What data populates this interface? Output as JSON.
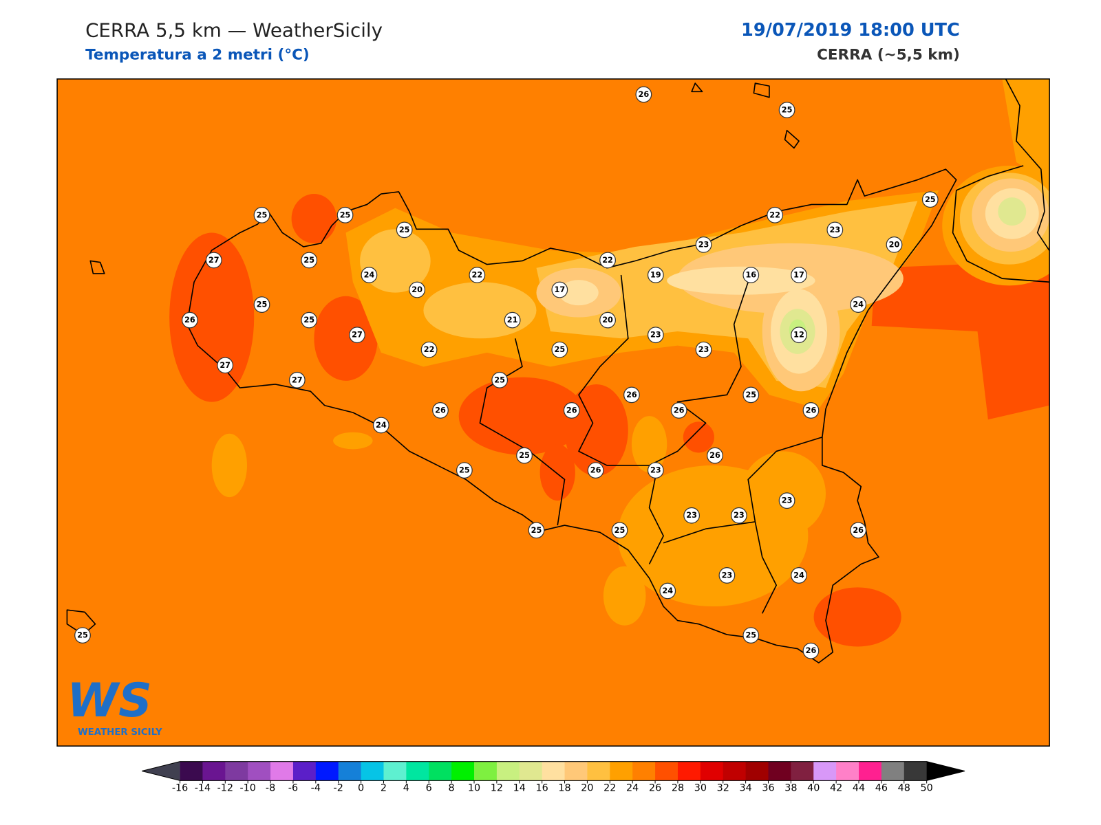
{
  "header": {
    "title": "CERRA 5,5 km — WeatherSicily",
    "subtitle": "Temperatura a 2 metri (°C)",
    "date": "19/07/2019 18:00 UTC",
    "source": "CERRA (~5,5 km)"
  },
  "logo": {
    "mark": "WS",
    "name": "WEATHER SICILY"
  },
  "stations": [
    26,
    25,
    25,
    25,
    25,
    25,
    22,
    23,
    27,
    25,
    23,
    22,
    20,
    24,
    22,
    19,
    16,
    17,
    20,
    17,
    25,
    24,
    26,
    25,
    21,
    20,
    27,
    23,
    12,
    22,
    25,
    23,
    27,
    25,
    27,
    26,
    25,
    26,
    26,
    26,
    26,
    24,
    25,
    26,
    25,
    26,
    23,
    23,
    23,
    23,
    25,
    25,
    26,
    23,
    24,
    24,
    25,
    25,
    26
  ],
  "colorbar": {
    "ticks": [
      -16,
      -14,
      -12,
      -10,
      -8,
      -6,
      -4,
      -2,
      0,
      2,
      4,
      6,
      8,
      10,
      12,
      14,
      16,
      18,
      20,
      22,
      24,
      26,
      28,
      30,
      32,
      34,
      36,
      38,
      40,
      42,
      44,
      46,
      48,
      50
    ],
    "colors": [
      "#3b0a4f",
      "#6a1591",
      "#7e3aa0",
      "#a04fc0",
      "#e07ae8",
      "#5b1fc8",
      "#0019ff",
      "#1580d8",
      "#06c4e6",
      "#5ef0d0",
      "#00e6a0",
      "#00e060",
      "#00f000",
      "#7ef040",
      "#c8f080",
      "#e0e890",
      "#ffe0a0",
      "#ffc878",
      "#ffc040",
      "#ffa000",
      "#ff8000",
      "#ff5000",
      "#ff1a00",
      "#e00000",
      "#c00000",
      "#a00000",
      "#700020",
      "#802040",
      "#d898f8",
      "#ff80c8",
      "#ff2090",
      "#808080",
      "#383838"
    ],
    "under": "#404050",
    "over": "#000000"
  }
}
